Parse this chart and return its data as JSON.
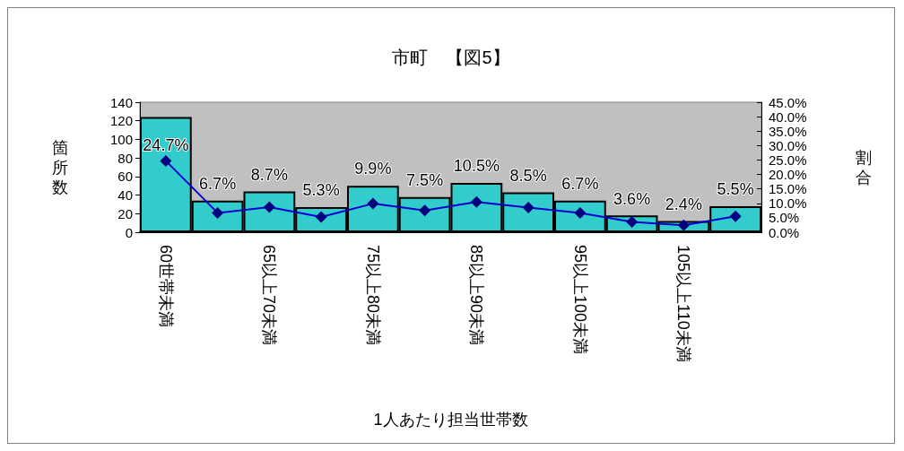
{
  "chart_data": {
    "type": "bar",
    "title": "市町　【図5】",
    "xlabel": "1人あたり担当世帯数",
    "ylabel": "箇所数",
    "y2label": "割合",
    "categories": [
      "60世帯未満",
      null,
      "65以上70未満",
      null,
      "75以上80未満",
      null,
      "85以上90未満",
      null,
      "95以上100未満",
      null,
      "105以上110未満",
      null
    ],
    "series": [
      {
        "color": "#33cccc",
        "values": [
          124,
          34,
          44,
          27,
          50,
          38,
          53,
          43,
          34,
          18,
          12,
          28
        ]
      },
      {
        "type": "line",
        "axis": "y2",
        "color": "#0000cc",
        "marker": "diamond",
        "values": [
          24.7,
          6.7,
          8.7,
          5.3,
          9.9,
          7.5,
          10.5,
          8.5,
          6.7,
          3.6,
          2.4,
          5.5
        ],
        "value_labels": [
          "24.7%",
          "6.7%",
          "8.7%",
          "5.3%",
          "9.9%",
          "7.5%",
          "10.5%",
          "8.5%",
          "6.7%",
          "3.6%",
          "2.4%",
          "5.5%"
        ]
      }
    ],
    "ylim": [
      0,
      140
    ],
    "yticks": [
      0,
      20,
      40,
      60,
      80,
      100,
      120,
      140
    ],
    "y2lim": [
      0,
      45
    ],
    "y2ticks": [
      {
        "value": 0,
        "label": "0.0%"
      },
      {
        "value": 5,
        "label": "5.0%"
      },
      {
        "value": 10,
        "label": "10.0%"
      },
      {
        "value": 15,
        "label": "15.0%"
      },
      {
        "value": 20,
        "label": "20.0%"
      },
      {
        "value": 25,
        "label": "25.0%"
      },
      {
        "value": 30,
        "label": "30.0%"
      },
      {
        "value": 35,
        "label": "35.0%"
      },
      {
        "value": 40,
        "label": "40.0%"
      },
      {
        "value": 45,
        "label": "45.0%"
      }
    ],
    "grid": false
  }
}
